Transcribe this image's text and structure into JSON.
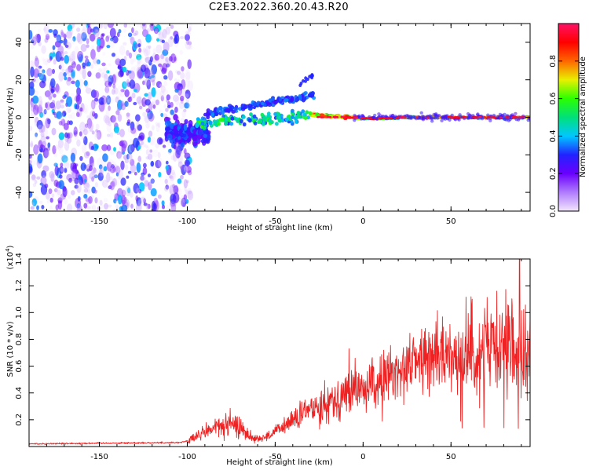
{
  "title": "C2E3.2022.360.20.43.R20",
  "chart_data": [
    {
      "type": "heatmap",
      "xlabel": "Height of straight line (km)",
      "ylabel": "Frequency (Hz)",
      "xlim": [
        -190,
        95
      ],
      "ylim": [
        -50,
        50
      ],
      "xticks": [
        -150,
        -100,
        -50,
        0,
        50
      ],
      "yticks": [
        -40,
        -20,
        0,
        20,
        40
      ],
      "grid": false,
      "colorbar": {
        "label": "Normalized spectral amplitude",
        "range": [
          0.0,
          1.0
        ],
        "ticks": [
          0.0,
          0.2,
          0.4,
          0.6,
          0.8
        ],
        "colormap": [
          "#f3e5ff",
          "#b07cff",
          "#6a00ff",
          "#2222ff",
          "#00c8ff",
          "#00e07a",
          "#2bff00",
          "#e8f000",
          "#ff6600",
          "#ff0000",
          "#ff1166"
        ]
      },
      "regions": [
        {
          "description": "noise",
          "x_range": [
            -190,
            -100
          ],
          "f_range": [
            -50,
            50
          ],
          "amplitude": 0.05
        },
        {
          "description": "onset",
          "x_range": [
            -110,
            -90
          ],
          "f_range": [
            -15,
            0
          ],
          "amplitude": 0.3
        },
        {
          "description": "signal",
          "x_range": [
            -95,
            -30
          ],
          "f_range": [
            -5,
            10
          ],
          "amplitude": 0.45
        },
        {
          "description": "signal",
          "x_range": [
            -30,
            0
          ],
          "f_range": [
            -2,
            2
          ],
          "amplitude": 0.85
        },
        {
          "description": "signal",
          "x_range": [
            0,
            95
          ],
          "f_range": [
            -1,
            1
          ],
          "amplitude": 0.9
        }
      ]
    },
    {
      "type": "line",
      "xlabel": "Height of straight line (km)",
      "ylabel": "SNR (10 * v/v)",
      "y_multiplier_label": "(x10",
      "y_multiplier_exp": "4",
      "y_multiplier_close": ")",
      "xlim": [
        -190,
        95
      ],
      "ylim": [
        0,
        14000
      ],
      "xticks": [
        -150,
        -100,
        -50,
        0,
        50
      ],
      "yticks": [
        2000,
        4000,
        6000,
        8000,
        10000,
        12000,
        14000
      ],
      "ytick_labels": [
        "0.2",
        "0.4",
        "0.6",
        "0.8",
        "1.0",
        "1.2",
        "1.4"
      ],
      "grid": false,
      "series": [
        {
          "name": "SNR",
          "color": "#ee2222",
          "x": [
            -190,
            -150,
            -105,
            -100,
            -95,
            -90,
            -85,
            -80,
            -75,
            -70,
            -65,
            -60,
            -55,
            -50,
            -45,
            -40,
            -35,
            -30,
            -25,
            -20,
            -15,
            -10,
            -5,
            0,
            5,
            10,
            15,
            20,
            25,
            30,
            35,
            40,
            45,
            50,
            55,
            60,
            65,
            70,
            75,
            80,
            85,
            90,
            95
          ],
          "values": [
            200,
            250,
            300,
            400,
            700,
            1100,
            1400,
            1500,
            1600,
            1500,
            800,
            600,
            700,
            1100,
            1500,
            2000,
            2300,
            2800,
            3100,
            3400,
            3600,
            3900,
            4200,
            4300,
            4500,
            4800,
            5200,
            5700,
            6100,
            6500,
            6600,
            6700,
            6800,
            6800,
            6900,
            7000,
            7100,
            7200,
            6900,
            7000,
            7200,
            6500,
            7200
          ]
        }
      ],
      "peaks": [
        {
          "x": -8,
          "y": 7300
        },
        {
          "x": 62,
          "y": 11000
        },
        {
          "x": 76,
          "y": 11600
        },
        {
          "x": 89,
          "y": 14000
        }
      ]
    }
  ]
}
